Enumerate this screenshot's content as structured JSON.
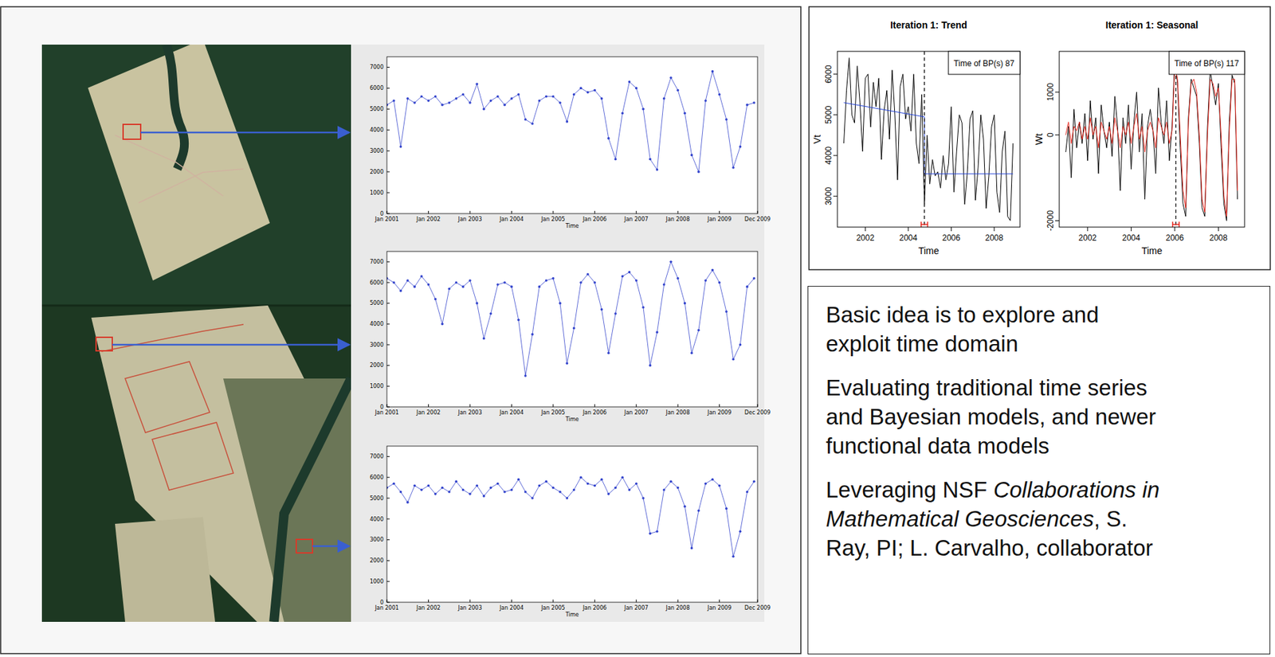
{
  "chart_data": [
    {
      "type": "line",
      "xlabel": "Time",
      "x": [
        2001,
        2001.167,
        2001.333,
        2001.5,
        2001.667,
        2001.833,
        2002,
        2002.167,
        2002.333,
        2002.5,
        2002.667,
        2002.833,
        2003,
        2003.167,
        2003.333,
        2003.5,
        2003.667,
        2003.833,
        2004,
        2004.167,
        2004.333,
        2004.5,
        2004.667,
        2004.833,
        2005,
        2005.167,
        2005.333,
        2005.5,
        2005.667,
        2005.833,
        2006,
        2006.167,
        2006.333,
        2006.5,
        2006.667,
        2006.833,
        2007,
        2007.167,
        2007.333,
        2007.5,
        2007.667,
        2007.833,
        2008,
        2008.167,
        2008.333,
        2008.5,
        2008.667,
        2008.833,
        2009,
        2009.167,
        2009.333,
        2009.5,
        2009.667,
        2009.833
      ],
      "xlim": [
        2001,
        2009.917
      ],
      "ylim": [
        0,
        7500
      ],
      "xticks": [
        {
          "value": 2001,
          "label": "Jan 2001"
        },
        {
          "value": 2002,
          "label": "Jan 2002"
        },
        {
          "value": 2003,
          "label": "Jan 2003"
        },
        {
          "value": 2004,
          "label": "Jan 2004"
        },
        {
          "value": 2005,
          "label": "Jan 2005"
        },
        {
          "value": 2006,
          "label": "Jan 2006"
        },
        {
          "value": 2007,
          "label": "Jan 2007"
        },
        {
          "value": 2008,
          "label": "Jan 2008"
        },
        {
          "value": 2009,
          "label": "Jan 2009"
        },
        {
          "value": 2009.917,
          "label": "Dec 2009"
        }
      ],
      "yticks": [
        0,
        1000,
        2000,
        3000,
        4000,
        5000,
        6000,
        7000
      ],
      "series": [
        {
          "color": "#3344cc",
          "marker": "circle",
          "values": [
            5200,
            5400,
            3200,
            5500,
            5300,
            5600,
            5400,
            5600,
            5200,
            5300,
            5500,
            5700,
            5300,
            6200,
            5000,
            5400,
            5600,
            5200,
            5500,
            5700,
            4500,
            4300,
            5400,
            5600,
            5600,
            5300,
            4400,
            5700,
            6000,
            5800,
            5900,
            5500,
            3600,
            2600,
            4800,
            6300,
            6000,
            5000,
            2600,
            2100,
            5500,
            6500,
            5900,
            4800,
            2800,
            2000,
            5400,
            6800,
            5700,
            4500,
            2200,
            3200,
            5200,
            5300
          ]
        }
      ]
    },
    {
      "type": "line",
      "xlabel": "Time",
      "x": [
        2001,
        2001.167,
        2001.333,
        2001.5,
        2001.667,
        2001.833,
        2002,
        2002.167,
        2002.333,
        2002.5,
        2002.667,
        2002.833,
        2003,
        2003.167,
        2003.333,
        2003.5,
        2003.667,
        2003.833,
        2004,
        2004.167,
        2004.333,
        2004.5,
        2004.667,
        2004.833,
        2005,
        2005.167,
        2005.333,
        2005.5,
        2005.667,
        2005.833,
        2006,
        2006.167,
        2006.333,
        2006.5,
        2006.667,
        2006.833,
        2007,
        2007.167,
        2007.333,
        2007.5,
        2007.667,
        2007.833,
        2008,
        2008.167,
        2008.333,
        2008.5,
        2008.667,
        2008.833,
        2009,
        2009.167,
        2009.333,
        2009.5,
        2009.667,
        2009.833
      ],
      "xlim": [
        2001,
        2009.917
      ],
      "ylim": [
        0,
        7500
      ],
      "xticks": [
        {
          "value": 2001,
          "label": "Jan 2001"
        },
        {
          "value": 2002,
          "label": "Jan 2002"
        },
        {
          "value": 2003,
          "label": "Jan 2003"
        },
        {
          "value": 2004,
          "label": "Jan 2004"
        },
        {
          "value": 2005,
          "label": "Jan 2005"
        },
        {
          "value": 2006,
          "label": "Jan 2006"
        },
        {
          "value": 2007,
          "label": "Jan 2007"
        },
        {
          "value": 2008,
          "label": "Jan 2008"
        },
        {
          "value": 2009,
          "label": "Jan 2009"
        },
        {
          "value": 2009.917,
          "label": "Dec 2009"
        }
      ],
      "yticks": [
        0,
        1000,
        2000,
        3000,
        4000,
        5000,
        6000,
        7000
      ],
      "series": [
        {
          "color": "#3344cc",
          "marker": "circle",
          "values": [
            6200,
            6000,
            5600,
            6100,
            5800,
            6300,
            5900,
            5200,
            4000,
            5700,
            6000,
            5800,
            6100,
            5000,
            3300,
            4500,
            5900,
            6000,
            5800,
            4200,
            1500,
            3500,
            5800,
            6100,
            6200,
            5000,
            2100,
            3800,
            6000,
            6400,
            6000,
            4700,
            2600,
            4500,
            6300,
            6500,
            6100,
            4800,
            2000,
            3600,
            5900,
            7000,
            6200,
            5000,
            2600,
            3700,
            6100,
            6600,
            6000,
            4600,
            2300,
            3000,
            5800,
            6200
          ]
        }
      ]
    },
    {
      "type": "line",
      "xlabel": "Time",
      "x": [
        2001,
        2001.167,
        2001.333,
        2001.5,
        2001.667,
        2001.833,
        2002,
        2002.167,
        2002.333,
        2002.5,
        2002.667,
        2002.833,
        2003,
        2003.167,
        2003.333,
        2003.5,
        2003.667,
        2003.833,
        2004,
        2004.167,
        2004.333,
        2004.5,
        2004.667,
        2004.833,
        2005,
        2005.167,
        2005.333,
        2005.5,
        2005.667,
        2005.833,
        2006,
        2006.167,
        2006.333,
        2006.5,
        2006.667,
        2006.833,
        2007,
        2007.167,
        2007.333,
        2007.5,
        2007.667,
        2007.833,
        2008,
        2008.167,
        2008.333,
        2008.5,
        2008.667,
        2008.833,
        2009,
        2009.167,
        2009.333,
        2009.5,
        2009.667,
        2009.833
      ],
      "xlim": [
        2001,
        2009.917
      ],
      "ylim": [
        0,
        7500
      ],
      "xticks": [
        {
          "value": 2001,
          "label": "Jan 2001"
        },
        {
          "value": 2002,
          "label": "Jan 2002"
        },
        {
          "value": 2003,
          "label": "Jan 2003"
        },
        {
          "value": 2004,
          "label": "Jan 2004"
        },
        {
          "value": 2005,
          "label": "Jan 2005"
        },
        {
          "value": 2006,
          "label": "Jan 2006"
        },
        {
          "value": 2007,
          "label": "Jan 2007"
        },
        {
          "value": 2008,
          "label": "Jan 2008"
        },
        {
          "value": 2009,
          "label": "Jan 2009"
        },
        {
          "value": 2009.917,
          "label": "Dec 2009"
        }
      ],
      "yticks": [
        0,
        1000,
        2000,
        3000,
        4000,
        5000,
        6000,
        7000
      ],
      "series": [
        {
          "color": "#3344cc",
          "marker": "circle",
          "values": [
            5500,
            5700,
            5300,
            4800,
            5600,
            5400,
            5600,
            5200,
            5500,
            5300,
            5800,
            5400,
            5200,
            5600,
            5100,
            5500,
            5700,
            5300,
            5400,
            5900,
            5300,
            5000,
            5600,
            5800,
            5500,
            5300,
            5000,
            5400,
            6000,
            5700,
            5600,
            5900,
            5200,
            5500,
            6000,
            5400,
            5700,
            5000,
            3300,
            3400,
            5400,
            5800,
            5500,
            4600,
            2600,
            4400,
            5700,
            5900,
            5600,
            4500,
            2200,
            3400,
            5300,
            5800
          ]
        }
      ]
    },
    {
      "type": "line",
      "title": "Iteration 1: Trend",
      "xlabel": "Time",
      "ylabel": "Vt",
      "x": [
        2001,
        2001.125,
        2001.25,
        2001.375,
        2001.5,
        2001.625,
        2001.75,
        2001.875,
        2002,
        2002.125,
        2002.25,
        2002.375,
        2002.5,
        2002.625,
        2002.75,
        2002.875,
        2003,
        2003.125,
        2003.25,
        2003.375,
        2003.5,
        2003.625,
        2003.75,
        2003.875,
        2004,
        2004.125,
        2004.25,
        2004.375,
        2004.5,
        2004.625,
        2004.75,
        2004.875,
        2005,
        2005.125,
        2005.25,
        2005.375,
        2005.5,
        2005.625,
        2005.75,
        2005.875,
        2006,
        2006.125,
        2006.25,
        2006.375,
        2006.5,
        2006.625,
        2006.75,
        2006.875,
        2007,
        2007.125,
        2007.25,
        2007.375,
        2007.5,
        2007.625,
        2007.75,
        2007.875,
        2008,
        2008.125,
        2008.25,
        2008.375,
        2008.5,
        2008.625,
        2008.75,
        2008.875
      ],
      "xlim": [
        2000.7,
        2009.2
      ],
      "ylim": [
        2240,
        6560
      ],
      "xticks": [
        2002,
        2004,
        2006,
        2008
      ],
      "yticks": [
        3000,
        4000,
        5000,
        6000
      ],
      "series": [
        {
          "color": "#000000",
          "values": [
            4300,
            5600,
            6400,
            5000,
            4800,
            6200,
            5300,
            4100,
            5900,
            6000,
            4700,
            5800,
            5200,
            5900,
            3900,
            5100,
            5600,
            4400,
            6100,
            5000,
            3400,
            5700,
            6000,
            4900,
            5200,
            4600,
            6000,
            4300,
            3800,
            5500,
            2800,
            4500,
            3300,
            3900,
            3500,
            3600,
            3200,
            4000,
            3400,
            3800,
            5200,
            3100,
            4100,
            5000,
            4800,
            2800,
            3600,
            4900,
            5100,
            2900,
            3700,
            5000,
            4400,
            2700,
            3500,
            4700,
            5000,
            3100,
            2600,
            4100,
            4600,
            2500,
            2400,
            4300
          ]
        },
        {
          "color": "#1f3fd6",
          "x": [
            2001,
            2004.75,
            2004.75,
            2008.875
          ],
          "values": [
            5300,
            4950,
            3550,
            3550
          ]
        }
      ],
      "breakpoint": 2004.75,
      "breakpoint_interval": [
        2004.6,
        2004.9
      ],
      "annotation": "Time of BP(s) 87"
    },
    {
      "type": "line",
      "title": "Iteration 1: Seasonal",
      "xlabel": "Time",
      "ylabel": "Wt",
      "x": [
        2001,
        2001.125,
        2001.25,
        2001.375,
        2001.5,
        2001.625,
        2001.75,
        2001.875,
        2002,
        2002.125,
        2002.25,
        2002.375,
        2002.5,
        2002.625,
        2002.75,
        2002.875,
        2003,
        2003.125,
        2003.25,
        2003.375,
        2003.5,
        2003.625,
        2003.75,
        2003.875,
        2004,
        2004.125,
        2004.25,
        2004.375,
        2004.5,
        2004.625,
        2004.75,
        2004.875,
        2005,
        2005.125,
        2005.25,
        2005.375,
        2005.5,
        2005.625,
        2005.75,
        2005.875,
        2006,
        2006.125,
        2006.25,
        2006.375,
        2006.5,
        2006.625,
        2006.75,
        2006.875,
        2007,
        2007.125,
        2007.25,
        2007.375,
        2007.5,
        2007.625,
        2007.75,
        2007.875,
        2008,
        2008.125,
        2008.25,
        2008.375,
        2008.5,
        2008.625,
        2008.75,
        2008.875
      ],
      "xlim": [
        2000.7,
        2009.2
      ],
      "ylim": [
        -2150,
        1950
      ],
      "xticks": [
        2002,
        2004,
        2006,
        2008
      ],
      "yticks": [
        -2000,
        0,
        1000
      ],
      "series": [
        {
          "color": "#000000",
          "values": [
            -400,
            200,
            -1000,
            600,
            -300,
            300,
            -200,
            500,
            -600,
            800,
            -100,
            400,
            -900,
            700,
            100,
            -300,
            300,
            -500,
            900,
            200,
            -1300,
            400,
            -200,
            700,
            -800,
            300,
            1000,
            -400,
            500,
            -1500,
            200,
            600,
            100,
            -900,
            1100,
            300,
            -200,
            800,
            -600,
            200,
            1800,
            1200,
            -300,
            -1600,
            -1900,
            400,
            1300,
            1100,
            900,
            -200,
            -1700,
            -1900,
            200,
            1500,
            1100,
            700,
            1200,
            -300,
            -1600,
            -2000,
            300,
            1400,
            1200,
            -1500
          ]
        },
        {
          "color": "#e8261c",
          "values": [
            0,
            300,
            -200,
            200,
            100,
            300,
            -100,
            200,
            -100,
            400,
            0,
            200,
            -300,
            300,
            100,
            -100,
            200,
            -200,
            400,
            100,
            -300,
            200,
            0,
            300,
            -200,
            200,
            500,
            -100,
            200,
            -400,
            100,
            300,
            100,
            -300,
            400,
            200,
            0,
            300,
            -200,
            100,
            1600,
            1300,
            0,
            -1300,
            -1700,
            300,
            1200,
            1300,
            1000,
            0,
            -1500,
            -1800,
            0,
            1300,
            1200,
            900,
            1100,
            0,
            -1400,
            -1900,
            100,
            1300,
            1300,
            -1300
          ]
        }
      ],
      "breakpoint": 2006.05,
      "breakpoint_interval": [
        2005.9,
        2006.2
      ],
      "annotation": "Time of BP(s) 117"
    }
  ],
  "text_box": {
    "paragraphs": [
      [
        [
          {
            "text": "Basic idea is to explore and"
          }
        ],
        [
          {
            "text": "exploit time domain"
          }
        ]
      ],
      [
        [
          {
            "text": "Evaluating traditional time series"
          }
        ],
        [
          {
            "text": "and Bayesian models, and newer"
          }
        ],
        [
          {
            "text": "functional data models"
          }
        ]
      ],
      [
        [
          {
            "text": "Leveraging NSF "
          },
          {
            "italic": "Collaborations in"
          }
        ],
        [
          {
            "italic": "Mathematical Geosciences"
          },
          {
            "text": ", S."
          }
        ],
        [
          {
            "text": "Ray, PI; L. Carvalho, collaborator"
          }
        ]
      ]
    ]
  }
}
